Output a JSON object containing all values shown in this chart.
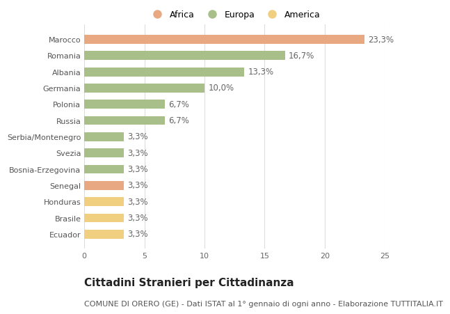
{
  "categories": [
    "Ecuador",
    "Brasile",
    "Honduras",
    "Senegal",
    "Bosnia-Erzegovina",
    "Svezia",
    "Serbia/Montenegro",
    "Russia",
    "Polonia",
    "Germania",
    "Albania",
    "Romania",
    "Marocco"
  ],
  "values": [
    3.3,
    3.3,
    3.3,
    3.3,
    3.3,
    3.3,
    3.3,
    6.7,
    6.7,
    10.0,
    13.3,
    16.7,
    23.3
  ],
  "labels": [
    "3,3%",
    "3,3%",
    "3,3%",
    "3,3%",
    "3,3%",
    "3,3%",
    "3,3%",
    "6,7%",
    "6,7%",
    "10,0%",
    "13,3%",
    "16,7%",
    "23,3%"
  ],
  "colors": [
    "#f0d080",
    "#f0d080",
    "#f0d080",
    "#e8a882",
    "#a8bf8a",
    "#a8bf8a",
    "#a8bf8a",
    "#a8bf8a",
    "#a8bf8a",
    "#a8bf8a",
    "#a8bf8a",
    "#a8bf8a",
    "#e8a882"
  ],
  "legend_labels": [
    "Africa",
    "Europa",
    "America"
  ],
  "legend_colors": [
    "#e8a882",
    "#a8bf8a",
    "#f0d080"
  ],
  "title": "Cittadini Stranieri per Cittadinanza",
  "subtitle": "COMUNE DI ORERO (GE) - Dati ISTAT al 1° gennaio di ogni anno - Elaborazione TUTTITALIA.IT",
  "xlim": [
    0,
    25
  ],
  "xticks": [
    0,
    5,
    10,
    15,
    20,
    25
  ],
  "background_color": "#ffffff",
  "grid_color": "#dddddd",
  "bar_height": 0.55,
  "title_fontsize": 11,
  "subtitle_fontsize": 8,
  "tick_fontsize": 8,
  "label_fontsize": 8.5
}
